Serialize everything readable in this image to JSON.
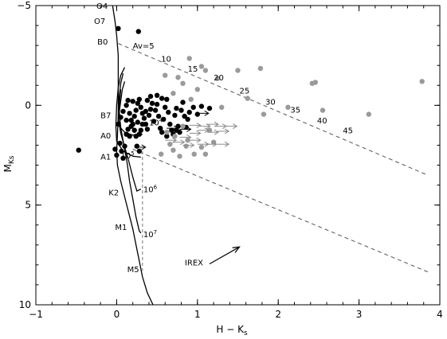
{
  "chart_data": {
    "type": "scatter",
    "title": "",
    "xlabel": "H − K",
    "xlabel_sub": "s",
    "ylabel": "M",
    "ylabel_sub": "Ks",
    "xlim": [
      -1,
      4
    ],
    "ylim": [
      10,
      -5
    ],
    "y_inverted": true,
    "grid": false,
    "x_ticks": [
      -1,
      0,
      1,
      2,
      3,
      4
    ],
    "x_tick_labels": [
      "−1",
      "0",
      "1",
      "2",
      "3",
      "4"
    ],
    "y_ticks": [
      -5,
      0,
      5,
      10
    ],
    "y_tick_labels": [
      "−5",
      "0",
      "5",
      "10"
    ],
    "colors": {
      "black": "#000000",
      "gray": "#9a9a9a",
      "gray_arrow": "#8c8c8c"
    },
    "series": [
      {
        "style": "black-dots",
        "points": [
          [
            -0.47,
            2.25
          ],
          [
            0.02,
            -3.85
          ],
          [
            0.27,
            -3.7
          ],
          [
            0.04,
            1.9
          ],
          [
            -0.02,
            2.2
          ],
          [
            0.06,
            2.3
          ],
          [
            0.0,
            2.5
          ],
          [
            0.08,
            2.65
          ],
          [
            0.1,
            2.05
          ],
          [
            0.12,
            1.45
          ],
          [
            0.02,
            0.95
          ],
          [
            0.05,
            0.6
          ],
          [
            0.08,
            0.3
          ],
          [
            0.12,
            0.0
          ],
          [
            0.14,
            -0.25
          ],
          [
            0.16,
            0.4
          ],
          [
            0.18,
            0.75
          ],
          [
            0.2,
            0.95
          ],
          [
            0.22,
            0.55
          ],
          [
            0.24,
            0.25
          ],
          [
            0.26,
            -0.1
          ],
          [
            0.28,
            -0.3
          ],
          [
            0.3,
            0.1
          ],
          [
            0.32,
            0.4
          ],
          [
            0.34,
            0.65
          ],
          [
            0.36,
            0.95
          ],
          [
            0.38,
            1.2
          ],
          [
            0.4,
            0.5
          ],
          [
            0.42,
            0.2
          ],
          [
            0.44,
            -0.1
          ],
          [
            0.14,
            1.2
          ],
          [
            0.16,
            1.55
          ],
          [
            0.18,
            1.05
          ],
          [
            0.22,
            1.25
          ],
          [
            0.26,
            0.85
          ],
          [
            0.28,
            1.45
          ],
          [
            0.3,
            1.25
          ],
          [
            0.32,
            0.95
          ],
          [
            0.36,
            0.3
          ],
          [
            0.38,
            -0.25
          ],
          [
            0.2,
            -0.2
          ],
          [
            0.24,
            1.55
          ],
          [
            0.46,
            0.8
          ],
          [
            0.48,
            0.25
          ],
          [
            0.5,
            -0.05
          ],
          [
            0.52,
            0.55
          ],
          [
            0.54,
            1.15
          ],
          [
            0.56,
            1.35
          ],
          [
            0.58,
            0.7
          ],
          [
            0.6,
            0.1
          ],
          [
            0.62,
            -0.3
          ],
          [
            0.64,
            0.35
          ],
          [
            0.66,
            0.95
          ],
          [
            0.68,
            1.25
          ],
          [
            0.7,
            1.45
          ],
          [
            0.72,
            0.5
          ],
          [
            0.74,
            0.15
          ],
          [
            0.76,
            1.05
          ],
          [
            0.78,
            1.35
          ],
          [
            0.8,
            0.25
          ],
          [
            0.82,
            -0.15
          ],
          [
            0.84,
            0.55
          ],
          [
            0.86,
            1.1
          ],
          [
            0.88,
            0.7
          ],
          [
            0.9,
            0.35
          ],
          [
            0.95,
            0.1
          ],
          [
            1.0,
            0.45
          ],
          [
            1.05,
            0.05
          ],
          [
            1.15,
            0.15
          ],
          [
            0.25,
            2.05
          ],
          [
            0.28,
            2.3
          ],
          [
            0.42,
            -0.45
          ],
          [
            0.5,
            -0.5
          ],
          [
            0.56,
            -0.35
          ],
          [
            0.62,
            1.55
          ],
          [
            0.74,
            1.25
          ],
          [
            0.12,
            0.75
          ]
        ]
      },
      {
        "style": "gray-dots",
        "points": [
          [
            0.6,
            -1.5
          ],
          [
            0.82,
            -1.1
          ],
          [
            0.9,
            -2.35
          ],
          [
            1.05,
            -1.95
          ],
          [
            1.25,
            -1.35
          ],
          [
            1.5,
            -1.75
          ],
          [
            1.78,
            -1.85
          ],
          [
            2.42,
            -1.1
          ],
          [
            2.46,
            -1.15
          ],
          [
            3.78,
            -1.2
          ],
          [
            1.62,
            -0.35
          ],
          [
            1.1,
            -1.75
          ],
          [
            0.92,
            -0.3
          ],
          [
            1.0,
            -0.8
          ],
          [
            0.7,
            -0.6
          ],
          [
            0.76,
            -1.4
          ],
          [
            2.55,
            0.25
          ],
          [
            3.12,
            0.45
          ],
          [
            2.12,
            0.1
          ],
          [
            1.82,
            0.45
          ],
          [
            1.3,
            0.1
          ],
          [
            0.55,
            2.45
          ],
          [
            0.7,
            2.25
          ],
          [
            0.78,
            2.55
          ],
          [
            0.86,
            2.05
          ],
          [
            0.96,
            2.45
          ],
          [
            1.05,
            2.1
          ],
          [
            1.1,
            2.45
          ],
          [
            0.66,
            1.95
          ],
          [
            1.2,
            1.85
          ],
          [
            0.72,
            1.55
          ],
          [
            0.88,
            1.75
          ],
          [
            1.15,
            1.25
          ],
          [
            0.82,
            1.05
          ],
          [
            0.62,
            1.35
          ]
        ]
      }
    ],
    "gray_upper_limit_arrows": [
      [
        0.9,
        1.0
      ],
      [
        1.02,
        1.05
      ],
      [
        1.12,
        0.95
      ],
      [
        1.22,
        1.05
      ],
      [
        1.35,
        1.05
      ],
      [
        0.9,
        1.4
      ],
      [
        1.0,
        1.25
      ],
      [
        1.12,
        1.35
      ],
      [
        1.25,
        1.3
      ],
      [
        0.78,
        1.6
      ],
      [
        0.9,
        1.75
      ],
      [
        1.0,
        1.95
      ],
      [
        1.1,
        1.95
      ],
      [
        1.25,
        1.95
      ],
      [
        0.7,
        1.85
      ],
      [
        0.82,
        2.0
      ],
      [
        0.6,
        1.75
      ]
    ],
    "black_upper_limit_arrows": [
      [
        1.0,
        0.4
      ],
      [
        0.62,
        1.15
      ],
      [
        0.78,
        1.2
      ],
      [
        0.22,
        2.1
      ]
    ],
    "reddening_vector": {
      "label": "IREX",
      "from": [
        1.15,
        7.95
      ],
      "to": [
        1.52,
        7.1
      ]
    },
    "main_sequence": [
      [
        -0.05,
        -5.0
      ],
      [
        -0.02,
        -4.2
      ],
      [
        0.0,
        -3.5
      ],
      [
        0.02,
        -2.5
      ],
      [
        0.02,
        -1.5
      ],
      [
        0.02,
        -0.5
      ],
      [
        0.02,
        0.5
      ],
      [
        0.01,
        1.5
      ],
      [
        0.0,
        2.3
      ],
      [
        0.01,
        3.0
      ],
      [
        0.05,
        3.8
      ],
      [
        0.1,
        4.6
      ],
      [
        0.15,
        5.4
      ],
      [
        0.2,
        6.2
      ],
      [
        0.24,
        7.0
      ],
      [
        0.28,
        7.8
      ],
      [
        0.32,
        8.6
      ],
      [
        0.38,
        9.4
      ],
      [
        0.45,
        10.0
      ]
    ],
    "isochrones": [
      {
        "label": "10^4",
        "points": [
          [
            0.1,
            -1.2
          ],
          [
            0.07,
            -0.8
          ],
          [
            0.05,
            -0.2
          ],
          [
            0.03,
            0.4
          ],
          [
            0.02,
            1.0
          ],
          [
            0.1,
            1.35
          ],
          [
            0.2,
            1.5
          ],
          [
            0.32,
            1.45
          ]
        ]
      },
      {
        "label": "10^5",
        "points": [
          [
            0.1,
            -1.9
          ],
          [
            0.05,
            -1.5
          ],
          [
            0.02,
            -0.9
          ],
          [
            0.0,
            0.0
          ],
          [
            -0.01,
            1.0
          ],
          [
            0.0,
            1.8
          ],
          [
            0.08,
            2.3
          ],
          [
            0.2,
            2.55
          ],
          [
            0.3,
            2.6
          ]
        ]
      },
      {
        "label": "10^6",
        "points": [
          [
            0.08,
            -1.6
          ],
          [
            0.05,
            -1.1
          ],
          [
            0.03,
            -0.3
          ],
          [
            0.02,
            0.6
          ],
          [
            0.05,
            1.4
          ],
          [
            0.1,
            2.1
          ],
          [
            0.15,
            2.8
          ],
          [
            0.2,
            3.6
          ],
          [
            0.25,
            4.3
          ],
          [
            0.3,
            4.2
          ]
        ]
      },
      {
        "label": "10^7",
        "points": [
          [
            0.05,
            -0.8
          ],
          [
            0.03,
            0.2
          ],
          [
            0.05,
            1.1
          ],
          [
            0.09,
            2.0
          ],
          [
            0.13,
            2.9
          ],
          [
            0.16,
            3.8
          ],
          [
            0.2,
            4.7
          ],
          [
            0.24,
            5.6
          ],
          [
            0.28,
            6.3
          ],
          [
            0.3,
            6.4
          ]
        ]
      }
    ],
    "isochrone_label_texts": [
      {
        "text": "10",
        "sup": "4",
        "at": [
          0.4,
          0.85
        ]
      },
      {
        "text": "10",
        "sup": "5",
        "at": [
          0.05,
          2.5
        ]
      },
      {
        "text": "10",
        "sup": "6",
        "at": [
          0.33,
          4.2
        ]
      },
      {
        "text": "10",
        "sup": "7",
        "at": [
          0.33,
          6.45
        ]
      }
    ],
    "dashed_extinction_lines": [
      {
        "from": [
          0.02,
          -3.1
        ],
        "to": [
          3.85,
          3.5
        ]
      },
      {
        "from": [
          0.2,
          2.2
        ],
        "to": [
          3.85,
          8.35
        ]
      }
    ],
    "vertical_dashed_line": {
      "from": [
        0.32,
        2.3
      ],
      "to": [
        0.32,
        8.3
      ]
    },
    "spectral_labels": [
      {
        "text": "O4",
        "at": [
          -0.25,
          -5.0
        ]
      },
      {
        "text": "O7",
        "at": [
          -0.28,
          -4.25
        ]
      },
      {
        "text": "B0",
        "at": [
          -0.24,
          -3.2
        ]
      },
      {
        "text": "B7",
        "at": [
          -0.2,
          0.48
        ]
      },
      {
        "text": "A0",
        "at": [
          -0.2,
          1.5
        ]
      },
      {
        "text": "A1",
        "at": [
          -0.2,
          2.55
        ]
      },
      {
        "text": "K2",
        "at": [
          -0.1,
          4.35
        ]
      },
      {
        "text": "M1",
        "at": [
          -0.02,
          6.1
        ]
      },
      {
        "text": "M5",
        "at": [
          0.13,
          8.2
        ]
      }
    ],
    "av_labels": [
      {
        "text": "Av=5",
        "at": [
          0.2,
          -3.0
        ]
      },
      {
        "text": "10",
        "at": [
          0.55,
          -2.35
        ]
      },
      {
        "text": "15",
        "at": [
          0.88,
          -1.85
        ]
      },
      {
        "text": "20",
        "at": [
          1.2,
          -1.4
        ]
      },
      {
        "text": "25",
        "at": [
          1.52,
          -0.75
        ]
      },
      {
        "text": "30",
        "at": [
          1.84,
          -0.2
        ]
      },
      {
        "text": "35",
        "at": [
          2.15,
          0.2
        ]
      },
      {
        "text": "40",
        "at": [
          2.48,
          0.75
        ]
      },
      {
        "text": "45",
        "at": [
          2.8,
          1.25
        ]
      }
    ]
  }
}
